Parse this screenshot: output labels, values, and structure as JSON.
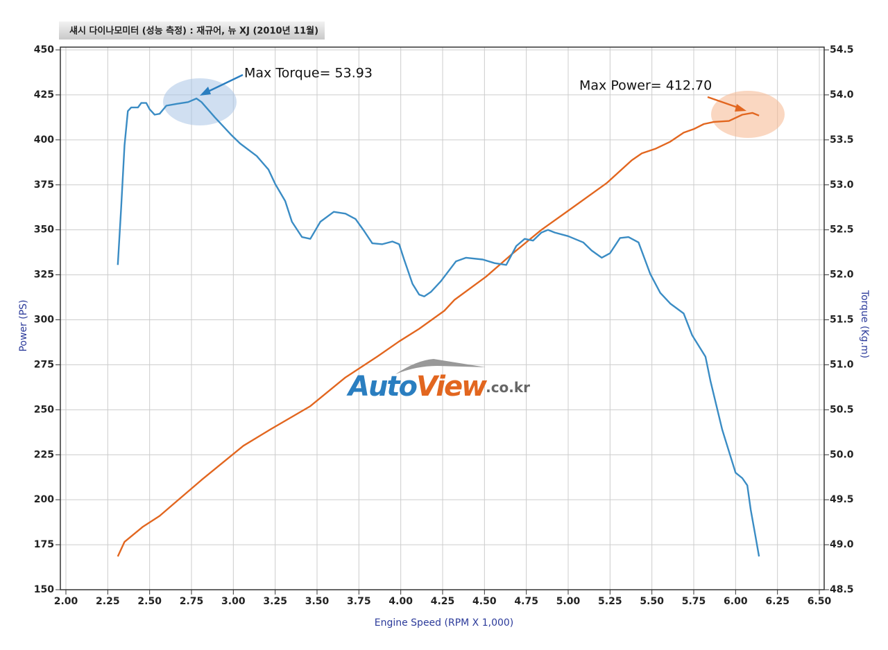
{
  "chart_data": {
    "type": "line",
    "title": "섀시 다이나모미터 (성능 측정) : 재규어, 뉴 XJ  (2010년 11월)",
    "xlabel": "Engine Speed (RPM X 1,000)",
    "ylabel": "Power (PS)",
    "y2label": "Torque (Kg.m)",
    "annotations": [
      "Max Torque= 53.93",
      "Max Power= 412.70"
    ],
    "watermark": [
      "Auto",
      "View",
      ".co.kr"
    ],
    "grid": true,
    "xlim": [
      2.0,
      6.5
    ],
    "xticks": [
      {
        "value": 2,
        "label": "2.00"
      },
      {
        "value": 2.25,
        "label": "2.25"
      },
      {
        "value": 2.5,
        "label": "2.50"
      },
      {
        "value": 2.75,
        "label": "2.75"
      },
      {
        "value": 3,
        "label": "3.00"
      },
      {
        "value": 3.25,
        "label": "3.25"
      },
      {
        "value": 3.5,
        "label": "3.50"
      },
      {
        "value": 3.75,
        "label": "3.75"
      },
      {
        "value": 4,
        "label": "4.00"
      },
      {
        "value": 4.25,
        "label": "4.25"
      },
      {
        "value": 4.5,
        "label": "4.50"
      },
      {
        "value": 4.75,
        "label": "4.75"
      },
      {
        "value": 5,
        "label": "5.00"
      },
      {
        "value": 5.25,
        "label": "5.25"
      },
      {
        "value": 5.5,
        "label": "5.50"
      },
      {
        "value": 5.75,
        "label": "5.75"
      },
      {
        "value": 6,
        "label": "6.00"
      },
      {
        "value": 6.25,
        "label": "6.25"
      },
      {
        "value": 6.5,
        "label": "6.50"
      }
    ],
    "ylim": [
      150,
      450
    ],
    "yticks": [
      150,
      175,
      200,
      225,
      250,
      275,
      300,
      325,
      350,
      375,
      400,
      425,
      450
    ],
    "y2lim": [
      48.5,
      54.5
    ],
    "y2ticks": [
      48.5,
      {
        "value": 49,
        "label": "49.0"
      },
      49.5,
      {
        "value": 50,
        "label": "50.0"
      },
      50.5,
      {
        "value": 51,
        "label": "51.0"
      },
      51.5,
      {
        "value": 52,
        "label": "52.0"
      },
      52.5,
      {
        "value": 53,
        "label": "53.0"
      },
      53.5,
      {
        "value": 54,
        "label": "54.0"
      },
      54.5
    ],
    "series": [
      {
        "color": "#e2661f",
        "axis": "y",
        "x": [
          2.31,
          2.35,
          2.46,
          2.56,
          2.81,
          3.06,
          3.22,
          3.46,
          3.67,
          3.86,
          3.99,
          4.11,
          4.26,
          4.32,
          4.51,
          4.67,
          4.84,
          5.0,
          5.23,
          5.38,
          5.44,
          5.52,
          5.61,
          5.69,
          5.75,
          5.81,
          5.87,
          5.96,
          6.04,
          6.1,
          6.14
        ],
        "values": [
          168.5,
          176.6,
          185,
          191,
          211,
          230,
          239,
          252,
          268,
          279.6,
          288,
          295,
          305,
          311,
          324,
          337,
          350,
          360.6,
          376,
          388.7,
          392.5,
          395,
          399,
          404,
          406,
          408.8,
          410,
          410.5,
          414,
          415,
          413.5
        ]
      },
      {
        "color": "#3a8cc4",
        "axis": "y2",
        "x": [
          2.31,
          2.33,
          2.35,
          2.37,
          2.39,
          2.43,
          2.45,
          2.48,
          2.5,
          2.53,
          2.56,
          2.6,
          2.66,
          2.73,
          2.78,
          2.81,
          2.89,
          2.99,
          3.04,
          3.14,
          3.21,
          3.25,
          3.31,
          3.35,
          3.41,
          3.46,
          3.52,
          3.6,
          3.67,
          3.73,
          3.78,
          3.83,
          3.89,
          3.95,
          3.99,
          4.02,
          4.07,
          4.11,
          4.14,
          4.18,
          4.24,
          4.33,
          4.39,
          4.49,
          4.56,
          4.63,
          4.69,
          4.74,
          4.79,
          4.84,
          4.88,
          4.92,
          5.0,
          5.09,
          5.14,
          5.2,
          5.25,
          5.31,
          5.36,
          5.42,
          5.49,
          5.55,
          5.61,
          5.69,
          5.74,
          5.82,
          5.85,
          5.92,
          6.0,
          6.04,
          6.07,
          6.09,
          6.12,
          6.14
        ],
        "values": [
          52.11,
          52.74,
          53.44,
          53.82,
          53.86,
          53.86,
          53.91,
          53.91,
          53.84,
          53.78,
          53.79,
          53.88,
          53.9,
          53.92,
          53.96,
          53.92,
          53.75,
          53.55,
          53.46,
          53.32,
          53.17,
          53.01,
          52.82,
          52.59,
          52.42,
          52.4,
          52.59,
          52.7,
          52.68,
          52.62,
          52.49,
          52.35,
          52.34,
          52.37,
          52.34,
          52.17,
          51.9,
          51.78,
          51.76,
          51.81,
          51.93,
          52.15,
          52.19,
          52.17,
          52.13,
          52.11,
          52.32,
          52.4,
          52.38,
          52.47,
          52.5,
          52.47,
          52.43,
          52.36,
          52.27,
          52.19,
          52.24,
          52.41,
          52.42,
          52.36,
          52.01,
          51.8,
          51.68,
          51.57,
          51.33,
          51.09,
          50.82,
          50.28,
          49.8,
          49.74,
          49.66,
          49.39,
          49.08,
          48.87
        ]
      }
    ]
  }
}
